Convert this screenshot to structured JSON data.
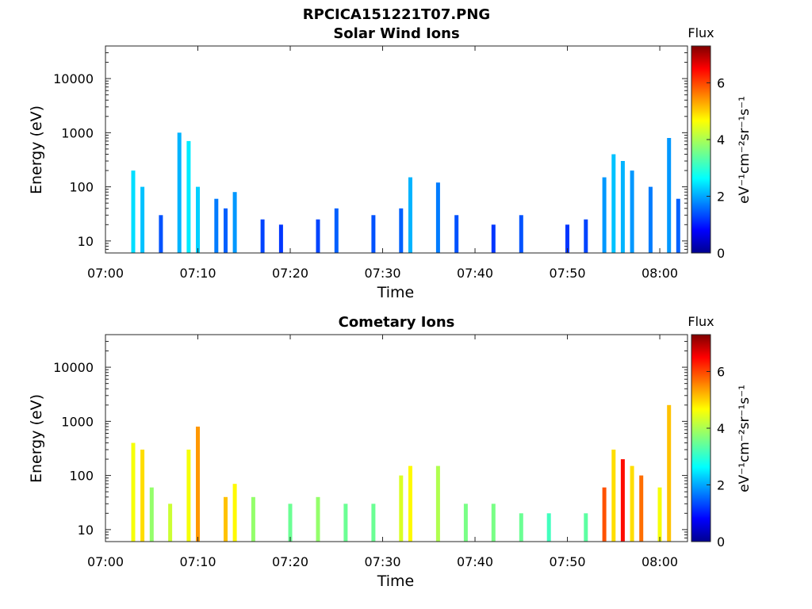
{
  "figure": {
    "title": "RPCICA151221T07.PNG"
  },
  "colorbar": {
    "title": "Flux",
    "min": 0,
    "max": 7.3,
    "ticks": [
      0,
      2,
      4,
      6
    ],
    "label": "eV⁻¹cm⁻²sr⁻¹s⁻¹",
    "colormap": [
      "#00008f",
      "#0000ff",
      "#007fff",
      "#00ffff",
      "#7fff7f",
      "#ffff00",
      "#ff7f00",
      "#ff0000",
      "#7f0000"
    ]
  },
  "chart_data": [
    {
      "type": "heatmap",
      "title": "Solar Wind Ions",
      "xlabel": "Time",
      "ylabel": "Energy (eV)",
      "y_scale": "log",
      "ylim": [
        6,
        40000
      ],
      "xlim": [
        "07:00",
        "08:03"
      ],
      "x_ticks": [
        "07:00",
        "07:10",
        "07:20",
        "07:30",
        "07:40",
        "07:50",
        "08:00"
      ],
      "y_ticks": [
        "10",
        "100",
        "1000",
        "10000"
      ],
      "bursts": [
        {
          "t": "07:03",
          "emin": 10,
          "emax": 200,
          "flux": 2.5
        },
        {
          "t": "07:04",
          "emin": 10,
          "emax": 100,
          "flux": 2.3
        },
        {
          "t": "07:06",
          "emin": 10,
          "emax": 30,
          "flux": 1.5
        },
        {
          "t": "07:08",
          "emin": 10,
          "emax": 1000,
          "flux": 2.2
        },
        {
          "t": "07:09",
          "emin": 10,
          "emax": 700,
          "flux": 2.6
        },
        {
          "t": "07:10",
          "emin": 10,
          "emax": 100,
          "flux": 2.4
        },
        {
          "t": "07:12",
          "emin": 10,
          "emax": 60,
          "flux": 1.8
        },
        {
          "t": "07:13",
          "emin": 10,
          "emax": 40,
          "flux": 1.6
        },
        {
          "t": "07:14",
          "emin": 10,
          "emax": 80,
          "flux": 2.0
        },
        {
          "t": "07:17",
          "emin": 10,
          "emax": 25,
          "flux": 1.4
        },
        {
          "t": "07:19",
          "emin": 10,
          "emax": 20,
          "flux": 1.3
        },
        {
          "t": "07:23",
          "emin": 10,
          "emax": 25,
          "flux": 1.4
        },
        {
          "t": "07:25",
          "emin": 10,
          "emax": 40,
          "flux": 1.6
        },
        {
          "t": "07:29",
          "emin": 10,
          "emax": 30,
          "flux": 1.5
        },
        {
          "t": "07:32",
          "emin": 10,
          "emax": 40,
          "flux": 1.6
        },
        {
          "t": "07:33",
          "emin": 10,
          "emax": 150,
          "flux": 2.2
        },
        {
          "t": "07:36",
          "emin": 10,
          "emax": 120,
          "flux": 1.8
        },
        {
          "t": "07:38",
          "emin": 10,
          "emax": 30,
          "flux": 1.5
        },
        {
          "t": "07:42",
          "emin": 10,
          "emax": 20,
          "flux": 1.3
        },
        {
          "t": "07:45",
          "emin": 10,
          "emax": 30,
          "flux": 1.5
        },
        {
          "t": "07:50",
          "emin": 10,
          "emax": 20,
          "flux": 1.3
        },
        {
          "t": "07:52",
          "emin": 10,
          "emax": 25,
          "flux": 1.4
        },
        {
          "t": "07:54",
          "emin": 10,
          "emax": 150,
          "flux": 2.0
        },
        {
          "t": "07:55",
          "emin": 10,
          "emax": 400,
          "flux": 2.3
        },
        {
          "t": "07:56",
          "emin": 10,
          "emax": 300,
          "flux": 2.2
        },
        {
          "t": "07:57",
          "emin": 10,
          "emax": 200,
          "flux": 2.0
        },
        {
          "t": "07:59",
          "emin": 10,
          "emax": 100,
          "flux": 1.8
        },
        {
          "t": "08:01",
          "emin": 10,
          "emax": 800,
          "flux": 2.0
        },
        {
          "t": "08:02",
          "emin": 10,
          "emax": 60,
          "flux": 1.6
        }
      ]
    },
    {
      "type": "heatmap",
      "title": "Cometary Ions",
      "xlabel": "Time",
      "ylabel": "Energy (eV)",
      "y_scale": "log",
      "ylim": [
        6,
        40000
      ],
      "xlim": [
        "07:00",
        "08:03"
      ],
      "x_ticks": [
        "07:00",
        "07:10",
        "07:20",
        "07:30",
        "07:40",
        "07:50",
        "08:00"
      ],
      "y_ticks": [
        "10",
        "100",
        "1000",
        "10000"
      ],
      "bursts": [
        {
          "t": "07:03",
          "emin": 10,
          "emax": 400,
          "flux": 4.5
        },
        {
          "t": "07:04",
          "emin": 10,
          "emax": 300,
          "flux": 4.8
        },
        {
          "t": "07:05",
          "emin": 10,
          "emax": 60,
          "flux": 3.8
        },
        {
          "t": "07:07",
          "emin": 10,
          "emax": 30,
          "flux": 4.2
        },
        {
          "t": "07:09",
          "emin": 10,
          "emax": 300,
          "flux": 4.5
        },
        {
          "t": "07:10",
          "emin": 10,
          "emax": 800,
          "flux": 5.3
        },
        {
          "t": "07:13",
          "emin": 10,
          "emax": 40,
          "flux": 5.0
        },
        {
          "t": "07:14",
          "emin": 10,
          "emax": 70,
          "flux": 4.6
        },
        {
          "t": "07:16",
          "emin": 10,
          "emax": 40,
          "flux": 3.8
        },
        {
          "t": "07:20",
          "emin": 10,
          "emax": 30,
          "flux": 3.5
        },
        {
          "t": "07:23",
          "emin": 10,
          "emax": 40,
          "flux": 3.8
        },
        {
          "t": "07:26",
          "emin": 10,
          "emax": 30,
          "flux": 3.5
        },
        {
          "t": "07:29",
          "emin": 10,
          "emax": 30,
          "flux": 3.5
        },
        {
          "t": "07:32",
          "emin": 10,
          "emax": 100,
          "flux": 4.3
        },
        {
          "t": "07:33",
          "emin": 10,
          "emax": 150,
          "flux": 4.6
        },
        {
          "t": "07:36",
          "emin": 10,
          "emax": 150,
          "flux": 4.0
        },
        {
          "t": "07:39",
          "emin": 10,
          "emax": 30,
          "flux": 3.6
        },
        {
          "t": "07:42",
          "emin": 10,
          "emax": 30,
          "flux": 3.6
        },
        {
          "t": "07:45",
          "emin": 10,
          "emax": 20,
          "flux": 3.5
        },
        {
          "t": "07:48",
          "emin": 10,
          "emax": 20,
          "flux": 3.2
        },
        {
          "t": "07:52",
          "emin": 10,
          "emax": 20,
          "flux": 3.4
        },
        {
          "t": "07:54",
          "emin": 10,
          "emax": 60,
          "flux": 5.8
        },
        {
          "t": "07:55",
          "emin": 10,
          "emax": 300,
          "flux": 4.8
        },
        {
          "t": "07:56",
          "emin": 10,
          "emax": 200,
          "flux": 6.3
        },
        {
          "t": "07:57",
          "emin": 10,
          "emax": 150,
          "flux": 4.8
        },
        {
          "t": "07:58",
          "emin": 10,
          "emax": 100,
          "flux": 5.6
        },
        {
          "t": "08:00",
          "emin": 10,
          "emax": 60,
          "flux": 4.5
        },
        {
          "t": "08:01",
          "emin": 10,
          "emax": 2000,
          "flux": 5.0
        }
      ]
    }
  ]
}
